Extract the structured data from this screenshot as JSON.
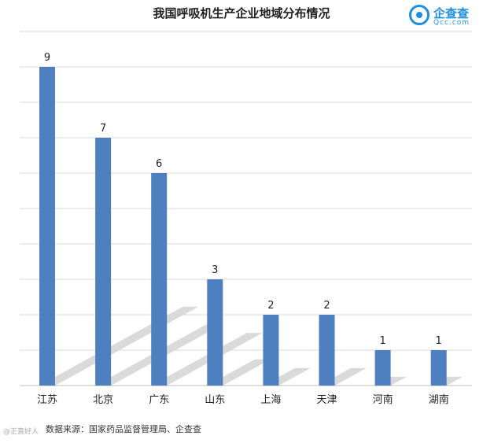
{
  "header": {
    "title": "我国呼吸机生产企业地域分布情况",
    "logo_name": "企查查",
    "logo_sub": "Qcc.com"
  },
  "footer": {
    "source": "数据来源：国家药品监督管理局、企查查",
    "watermark": "@正直好人"
  },
  "colors": {
    "bar": "#4e80bf",
    "grid": "#d9d9d9",
    "shadow": "#d4d4d4"
  },
  "chart_data": {
    "type": "bar",
    "title": "我国呼吸机生产企业地域分布情况",
    "xlabel": "",
    "ylabel": "",
    "categories": [
      "江苏",
      "北京",
      "广东",
      "山东",
      "上海",
      "天津",
      "河南",
      "湖南"
    ],
    "values": [
      9,
      7,
      6,
      3,
      2,
      2,
      1,
      1
    ],
    "ylim": [
      0,
      10
    ],
    "grid": true,
    "data_labels": true
  }
}
